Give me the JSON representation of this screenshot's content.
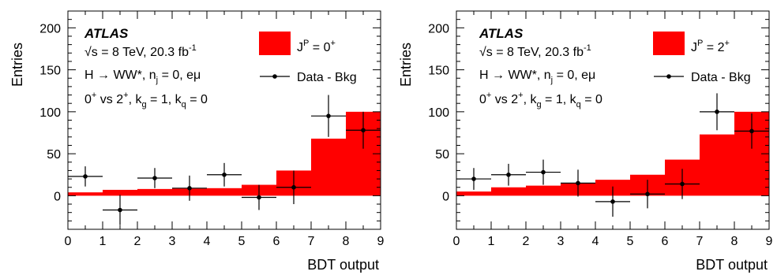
{
  "chart_data": [
    {
      "type": "bar",
      "panel": "left",
      "xlabel": "BDT output",
      "ylabel": "Entries",
      "xlim": [
        0,
        9
      ],
      "ylim": [
        -40,
        220
      ],
      "xticks": [
        "0",
        "1",
        "2",
        "3",
        "4",
        "5",
        "6",
        "7",
        "8",
        "9"
      ],
      "yticks": [
        "0",
        "50",
        "100",
        "150",
        "200"
      ],
      "atlas_label": "ATLAS",
      "info_lines": {
        "energy": {
          "prefix": "√s = 8 TeV, 20.3 fb",
          "sup": "-1"
        },
        "process": {
          "main": "H → WW*, n",
          "sub": "j",
          "rest": " = 0, eμ"
        },
        "hypo": {
          "a": "0",
          "a_sup": "+",
          "b": " vs 2",
          "b_sup": "+",
          "c": ", k",
          "c_sub": "g",
          "d": " = 1, k",
          "d_sub": "q",
          "e": " = 0"
        }
      },
      "legend_signal": {
        "main": "J",
        "sup": "P",
        "rest": " = 0",
        "rest_sup": "+"
      },
      "legend_data": "Data - Bkg",
      "series": [
        {
          "kind": "histogram",
          "color": "#ff0000",
          "bin_edges": [
            0,
            1,
            2,
            3,
            4,
            5,
            6,
            7,
            8,
            9
          ],
          "values": [
            4,
            7,
            8,
            8.5,
            9,
            13,
            30,
            68,
            100
          ]
        },
        {
          "kind": "points",
          "x": [
            0.5,
            1.5,
            2.5,
            3.5,
            4.5,
            5.5,
            6.5,
            7.5,
            8.5
          ],
          "y": [
            23,
            -17,
            21,
            9,
            25,
            -2,
            10,
            95,
            78
          ],
          "err": [
            12,
            18,
            12,
            15,
            14,
            15,
            20,
            25,
            22
          ]
        }
      ]
    },
    {
      "type": "bar",
      "panel": "right",
      "xlabel": "BDT output",
      "ylabel": "Entries",
      "xlim": [
        0,
        9
      ],
      "ylim": [
        -40,
        220
      ],
      "xticks": [
        "0",
        "1",
        "2",
        "3",
        "4",
        "5",
        "6",
        "7",
        "8",
        "9"
      ],
      "yticks": [
        "0",
        "50",
        "100",
        "150",
        "200"
      ],
      "atlas_label": "ATLAS",
      "info_lines": {
        "energy": {
          "prefix": "√s = 8 TeV, 20.3 fb",
          "sup": "-1"
        },
        "process": {
          "main": "H → WW*, n",
          "sub": "j",
          "rest": " = 0, eμ"
        },
        "hypo": {
          "a": "0",
          "a_sup": "+",
          "b": " vs 2",
          "b_sup": "+",
          "c": ", k",
          "c_sub": "g",
          "d": " = 1, k",
          "d_sub": "q",
          "e": " = 0"
        }
      },
      "legend_signal": {
        "main": "J",
        "sup": "P",
        "rest": " = 2",
        "rest_sup": "+"
      },
      "legend_data": "Data - Bkg",
      "series": [
        {
          "kind": "histogram",
          "color": "#ff0000",
          "bin_edges": [
            0,
            1,
            2,
            3,
            4,
            5,
            6,
            7,
            8,
            9
          ],
          "values": [
            5,
            10,
            12,
            15,
            19,
            25,
            43,
            73,
            100
          ]
        },
        {
          "kind": "points",
          "x": [
            0.5,
            1.5,
            2.5,
            3.5,
            4.5,
            5.5,
            6.5,
            7.5,
            8.5
          ],
          "y": [
            20,
            25,
            28,
            15,
            -7,
            2,
            14,
            100,
            77
          ],
          "err": [
            13,
            13,
            15,
            16,
            18,
            17,
            18,
            22,
            21
          ]
        }
      ]
    }
  ]
}
